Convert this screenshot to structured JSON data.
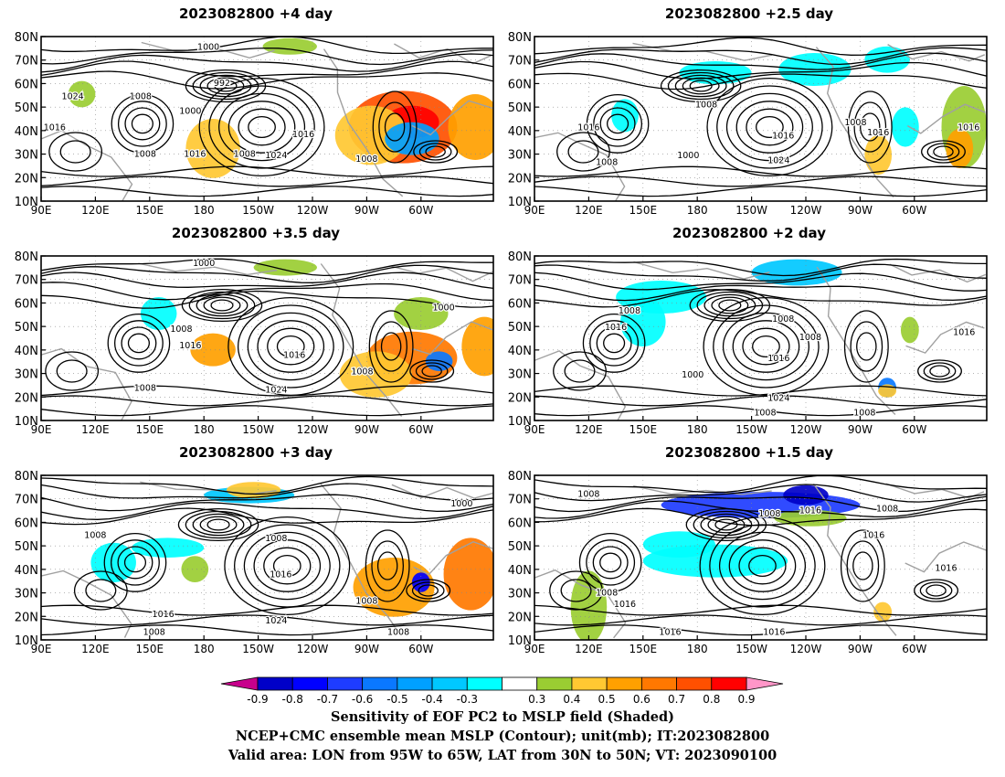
{
  "panels": [
    {
      "title": "2023082800  +4 day",
      "labels": [
        [
          "1000",
          0.37,
          0.08
        ],
        [
          "1024",
          0.07,
          0.38
        ],
        [
          "1008",
          0.22,
          0.38
        ],
        [
          "992",
          0.4,
          0.3
        ],
        [
          "1000",
          0.33,
          0.47
        ],
        [
          "1008",
          0.45,
          0.73
        ],
        [
          "1016",
          0.58,
          0.61
        ],
        [
          "1016",
          0.34,
          0.73
        ],
        [
          "1024",
          0.52,
          0.74
        ],
        [
          "1008",
          0.72,
          0.76
        ],
        [
          "1016",
          0.03,
          0.57
        ],
        [
          "1008",
          0.23,
          0.73
        ]
      ]
    },
    {
      "title": "2023082800  +2.5 day",
      "labels": [
        [
          "1008",
          0.38,
          0.43
        ],
        [
          "1016",
          0.12,
          0.57
        ],
        [
          "1000",
          0.34,
          0.74
        ],
        [
          "1016",
          0.55,
          0.62
        ],
        [
          "1008",
          0.71,
          0.54
        ],
        [
          "1016",
          0.76,
          0.6
        ],
        [
          "1024",
          0.54,
          0.77
        ],
        [
          "1008",
          0.16,
          0.78
        ],
        [
          "1016",
          0.96,
          0.57
        ]
      ]
    },
    {
      "title": "2023082800  +3.5 day",
      "labels": [
        [
          "1000",
          0.36,
          0.06
        ],
        [
          "1008",
          0.31,
          0.46
        ],
        [
          "1016",
          0.33,
          0.56
        ],
        [
          "1016",
          0.56,
          0.62
        ],
        [
          "1000",
          0.89,
          0.33
        ],
        [
          "1008",
          0.71,
          0.72
        ],
        [
          "1024",
          0.52,
          0.83
        ],
        [
          "1008",
          0.23,
          0.82
        ]
      ]
    },
    {
      "title": "2023082800  +2 day",
      "labels": [
        [
          "1008",
          0.21,
          0.35
        ],
        [
          "1016",
          0.18,
          0.45
        ],
        [
          "1008",
          0.55,
          0.4
        ],
        [
          "1008",
          0.61,
          0.51
        ],
        [
          "1000",
          0.35,
          0.74
        ],
        [
          "1016",
          0.54,
          0.64
        ],
        [
          "1024",
          0.54,
          0.88
        ],
        [
          "1016",
          0.95,
          0.48
        ],
        [
          "1008",
          0.51,
          1.06
        ],
        [
          "1008",
          0.73,
          1.07
        ]
      ]
    },
    {
      "title": "2023082800  +3 day",
      "labels": [
        [
          "1008",
          0.12,
          0.38
        ],
        [
          "1008",
          0.52,
          0.4
        ],
        [
          "1016",
          0.53,
          0.62
        ],
        [
          "1000",
          0.93,
          0.19
        ],
        [
          "1008",
          0.72,
          0.78
        ],
        [
          "1016",
          0.27,
          0.86
        ],
        [
          "1024",
          0.52,
          0.9
        ],
        [
          "1008",
          0.79,
          1.06
        ],
        [
          "1008",
          0.25,
          1.16
        ]
      ]
    },
    {
      "title": "2023082800  +1.5 day",
      "labels": [
        [
          "1008",
          0.12,
          0.13
        ],
        [
          "1008",
          0.52,
          0.25
        ],
        [
          "1016",
          0.61,
          0.23
        ],
        [
          "1008",
          0.78,
          0.22
        ],
        [
          "1016",
          0.75,
          0.38
        ],
        [
          "1016",
          0.91,
          0.58
        ],
        [
          "1008",
          0.16,
          0.73
        ],
        [
          "1016",
          0.2,
          0.8
        ],
        [
          "1016",
          0.3,
          0.98
        ],
        [
          "1016",
          0.53,
          1.18
        ]
      ]
    }
  ],
  "axes": {
    "lat_labels": [
      "80N",
      "70N",
      "60N",
      "50N",
      "40N",
      "30N",
      "20N",
      "10N"
    ],
    "lon_labels": [
      "90E",
      "120E",
      "150E",
      "180",
      "150W",
      "120W",
      "90W",
      "60W"
    ]
  },
  "colorbar": {
    "ticks": [
      "-0.9",
      "-0.8",
      "-0.7",
      "-0.6",
      "-0.5",
      "-0.4",
      "-0.3",
      "0.3",
      "0.4",
      "0.5",
      "0.6",
      "0.7",
      "0.8",
      "0.9"
    ],
    "colors": [
      "#0000c8",
      "#0000ff",
      "#1e3cff",
      "#0a78ff",
      "#00a0ff",
      "#00c8ff",
      "#00ffff",
      "#ffffff",
      "#9acd32",
      "#ffc832",
      "#ffa000",
      "#ff7800",
      "#ff5000",
      "#ff0000"
    ],
    "low_color": "#c8008c",
    "high_color": "#ff96c8"
  },
  "captions": {
    "line1": "Sensitivity of EOF PC2 to MSLP field (Shaded)",
    "line2": "NCEP+CMC ensemble mean MSLP (Contour); unit(mb); IT:2023082800",
    "line3": "Valid area: LON from 95W to 65W, LAT from 30N to 50N; VT: 2023090100"
  },
  "shading": [
    [
      [
        0.8,
        0.55,
        0.12,
        0.22,
        "#ff5000"
      ],
      [
        0.82,
        0.52,
        0.06,
        0.1,
        "#ff0000"
      ],
      [
        0.73,
        0.6,
        0.08,
        0.18,
        "#ffc832"
      ],
      [
        0.82,
        0.62,
        0.06,
        0.1,
        "#00a0ff"
      ],
      [
        0.96,
        0.55,
        0.06,
        0.2,
        "#ffa000"
      ],
      [
        0.38,
        0.68,
        0.06,
        0.18,
        "#ffc832"
      ],
      [
        0.55,
        0.06,
        0.06,
        0.05,
        "#9acd32"
      ],
      [
        0.09,
        0.35,
        0.03,
        0.08,
        "#9acd32"
      ]
    ],
    [
      [
        0.4,
        0.22,
        0.08,
        0.07,
        "#00ffff"
      ],
      [
        0.2,
        0.48,
        0.03,
        0.1,
        "#00ffff"
      ],
      [
        0.76,
        0.72,
        0.03,
        0.12,
        "#ffc832"
      ],
      [
        0.82,
        0.55,
        0.03,
        0.12,
        "#00ffff"
      ],
      [
        0.95,
        0.55,
        0.05,
        0.25,
        "#9acd32"
      ],
      [
        0.94,
        0.68,
        0.03,
        0.12,
        "#ffa000"
      ],
      [
        0.62,
        0.2,
        0.08,
        0.1,
        "#00ffff"
      ],
      [
        0.78,
        0.14,
        0.05,
        0.08,
        "#00ffff"
      ]
    ],
    [
      [
        0.82,
        0.62,
        0.1,
        0.16,
        "#ff7800"
      ],
      [
        0.74,
        0.72,
        0.08,
        0.14,
        "#ffc832"
      ],
      [
        0.88,
        0.64,
        0.03,
        0.06,
        "#0a78ff"
      ],
      [
        0.98,
        0.55,
        0.05,
        0.18,
        "#ffa000"
      ],
      [
        0.38,
        0.57,
        0.05,
        0.1,
        "#ffa000"
      ],
      [
        0.26,
        0.35,
        0.04,
        0.1,
        "#00ffff"
      ],
      [
        0.54,
        0.07,
        0.07,
        0.05,
        "#9acd32"
      ],
      [
        0.84,
        0.35,
        0.06,
        0.1,
        "#9acd32"
      ]
    ],
    [
      [
        0.58,
        0.1,
        0.1,
        0.08,
        "#00c8ff"
      ],
      [
        0.28,
        0.25,
        0.1,
        0.1,
        "#00ffff"
      ],
      [
        0.78,
        0.8,
        0.02,
        0.06,
        "#0a78ff"
      ],
      [
        0.78,
        0.82,
        0.02,
        0.04,
        "#ffc832"
      ],
      [
        0.24,
        0.4,
        0.05,
        0.15,
        "#00ffff"
      ],
      [
        0.83,
        0.45,
        0.02,
        0.08,
        "#9acd32"
      ]
    ],
    [
      [
        0.46,
        0.12,
        0.1,
        0.05,
        "#00c8ff"
      ],
      [
        0.28,
        0.44,
        0.08,
        0.06,
        "#00ffff"
      ],
      [
        0.78,
        0.68,
        0.09,
        0.18,
        "#ffa000"
      ],
      [
        0.84,
        0.65,
        0.02,
        0.06,
        "#0000ff"
      ],
      [
        0.95,
        0.6,
        0.06,
        0.22,
        "#ff7800"
      ],
      [
        0.34,
        0.57,
        0.03,
        0.08,
        "#9acd32"
      ],
      [
        0.47,
        0.09,
        0.06,
        0.05,
        "#ffc832"
      ],
      [
        0.16,
        0.53,
        0.05,
        0.12,
        "#00ffff"
      ]
    ],
    [
      [
        0.5,
        0.18,
        0.22,
        0.08,
        "#1e3cff"
      ],
      [
        0.4,
        0.52,
        0.16,
        0.1,
        "#00ffff"
      ],
      [
        0.32,
        0.42,
        0.08,
        0.08,
        "#00ffff"
      ],
      [
        0.12,
        0.8,
        0.04,
        0.22,
        "#9acd32"
      ],
      [
        0.77,
        0.83,
        0.02,
        0.06,
        "#ffc832"
      ],
      [
        0.6,
        0.12,
        0.05,
        0.06,
        "#0000c8"
      ],
      [
        0.61,
        0.26,
        0.08,
        0.05,
        "#9acd32"
      ]
    ]
  ]
}
